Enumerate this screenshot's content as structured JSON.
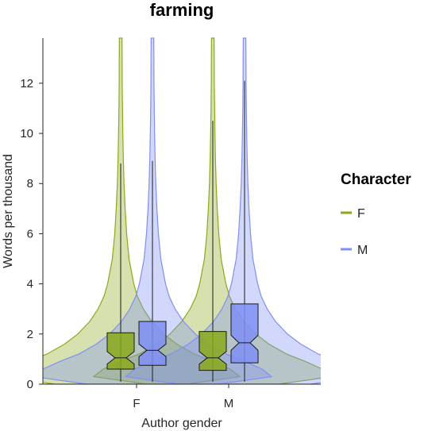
{
  "chart_data": {
    "type": "violin",
    "title": "farming",
    "xlabel": "Author gender",
    "ylabel": "Words per thousand",
    "categories": [
      "F",
      "M"
    ],
    "ylim": [
      0,
      13.8
    ],
    "yticks": [
      0,
      2,
      4,
      6,
      8,
      10,
      12
    ],
    "legend": {
      "title": "Character",
      "placement": "right"
    },
    "series": [
      {
        "name": "F",
        "color": "#8aaa1a",
        "stats": [
          {
            "category": "F",
            "q1": 0.6,
            "median": 1.05,
            "q3": 2.05,
            "notch_low": 0.8,
            "notch_high": 1.3,
            "whisker_low": 0.1,
            "whisker_high": 8.8
          },
          {
            "category": "M",
            "q1": 0.55,
            "median": 1.05,
            "q3": 2.1,
            "notch_low": 0.8,
            "notch_high": 1.3,
            "whisker_low": 0.1,
            "whisker_high": 10.5
          }
        ]
      },
      {
        "name": "M",
        "color": "#7f8ff5",
        "stats": [
          {
            "category": "F",
            "q1": 0.75,
            "median": 1.35,
            "q3": 2.5,
            "notch_low": 1.1,
            "notch_high": 1.6,
            "whisker_low": 0.1,
            "whisker_high": 8.9
          },
          {
            "category": "M",
            "q1": 0.85,
            "median": 1.65,
            "q3": 3.2,
            "notch_low": 1.35,
            "notch_high": 1.95,
            "whisker_low": 0.1,
            "whisker_high": 12.1
          }
        ]
      }
    ]
  }
}
